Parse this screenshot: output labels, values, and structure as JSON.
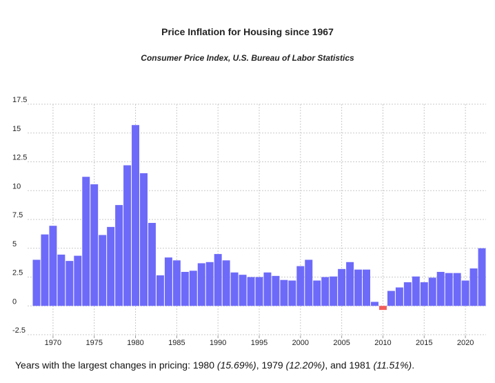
{
  "chart_data": {
    "type": "bar",
    "title": "Price Inflation for Housing since 1967",
    "subtitle": "Consumer Price Index, U.S. Bureau of Labor Statistics",
    "x": [
      1968,
      1969,
      1970,
      1971,
      1972,
      1973,
      1974,
      1975,
      1976,
      1977,
      1978,
      1979,
      1980,
      1981,
      1982,
      1983,
      1984,
      1985,
      1986,
      1987,
      1988,
      1989,
      1990,
      1991,
      1992,
      1993,
      1994,
      1995,
      1996,
      1997,
      1998,
      1999,
      2000,
      2001,
      2002,
      2003,
      2004,
      2005,
      2006,
      2007,
      2008,
      2009,
      2010,
      2011,
      2012,
      2013,
      2014,
      2015,
      2016,
      2017,
      2018,
      2019,
      2020,
      2021,
      2022
    ],
    "values": [
      4.0,
      6.2,
      6.95,
      4.45,
      3.9,
      4.35,
      11.2,
      10.55,
      6.15,
      6.85,
      8.75,
      12.2,
      15.69,
      11.51,
      7.2,
      2.65,
      4.2,
      3.95,
      2.95,
      3.05,
      3.7,
      3.8,
      4.5,
      3.95,
      2.9,
      2.7,
      2.5,
      2.5,
      2.9,
      2.6,
      2.25,
      2.2,
      3.45,
      4.0,
      2.2,
      2.5,
      2.55,
      3.2,
      3.8,
      3.15,
      3.15,
      0.35,
      -0.35,
      1.3,
      1.6,
      2.05,
      2.55,
      2.05,
      2.45,
      2.95,
      2.85,
      2.85,
      2.2,
      3.25,
      5.0
    ],
    "color": "#6d6af9",
    "negative_color": "#f25c5c",
    "xlim": [
      1967.5,
      2022.5
    ],
    "xticks": [
      1970,
      1975,
      1980,
      1985,
      1990,
      1995,
      2000,
      2005,
      2010,
      2015,
      2020
    ],
    "ylim": [
      -2.5,
      17.5
    ],
    "yticks": [
      17.5,
      15,
      12.5,
      10,
      7.5,
      5,
      2.5,
      0,
      -2.5
    ],
    "grid": true,
    "footnote": {
      "intro": "Years with the largest changes in pricing:",
      "items": [
        {
          "year": "1980",
          "change": "(15.69%)"
        },
        {
          "year": "1979",
          "change": "(12.20%)"
        },
        {
          "year": "1981",
          "change": "(11.51%)"
        }
      ],
      "separators": [
        ",",
        ", and",
        "."
      ]
    }
  }
}
